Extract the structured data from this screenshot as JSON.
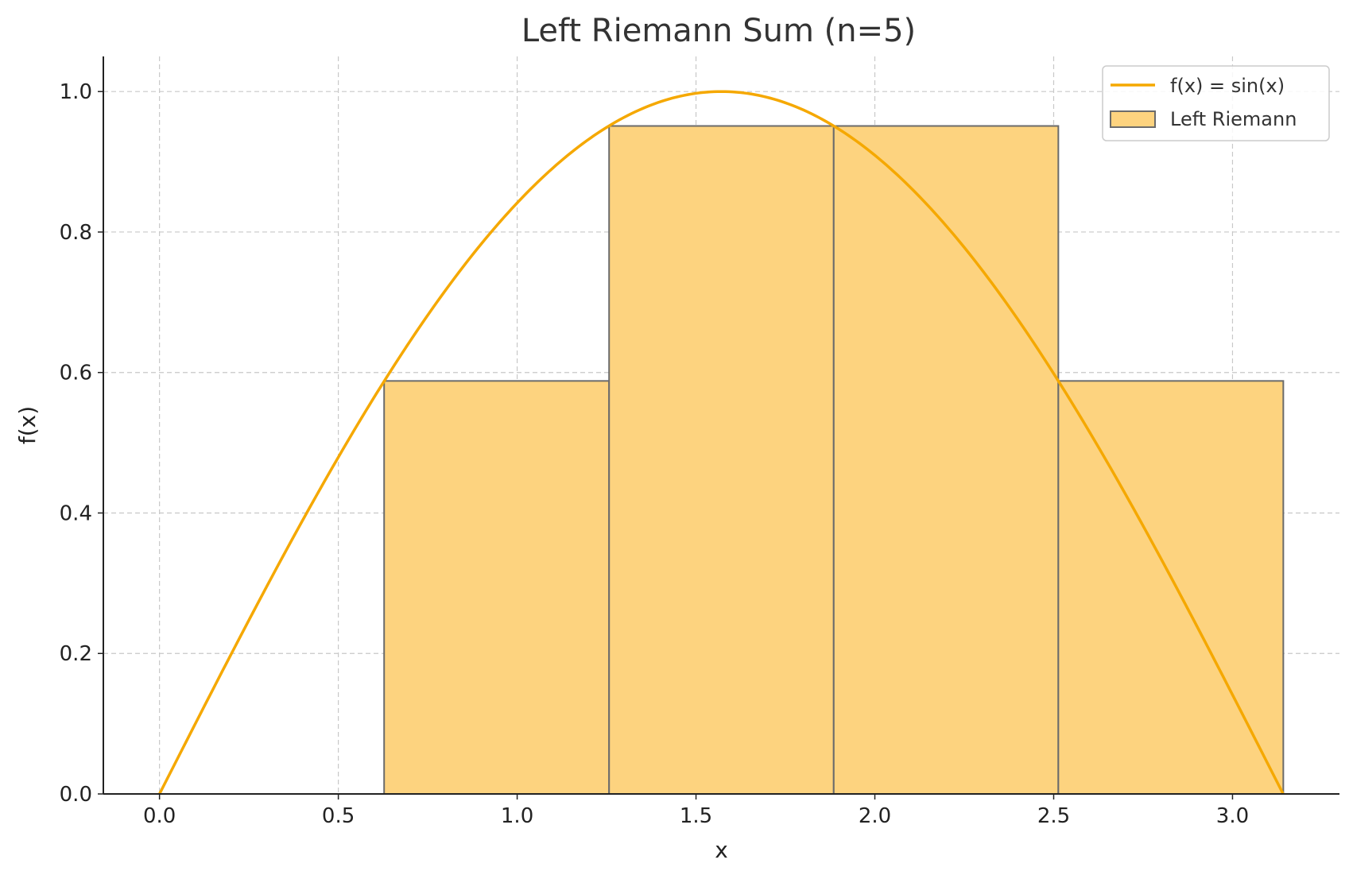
{
  "chart_data": {
    "type": "bar",
    "title": "Left Riemann Sum (n=5)",
    "xlabel": "x",
    "ylabel": "f(x)",
    "xlim": [
      -0.157,
      3.299
    ],
    "ylim": [
      0.0,
      1.05
    ],
    "xticks": [
      "0.0",
      "0.5",
      "1.0",
      "1.5",
      "2.0",
      "2.5",
      "3.0"
    ],
    "yticks": [
      "0.0",
      "0.2",
      "0.4",
      "0.6",
      "0.8",
      "1.0"
    ],
    "grid": true,
    "legend_position": "top-right",
    "series": [
      {
        "name": "f(x) = sin(x)",
        "kind": "line",
        "x_range": [
          0,
          3.1416
        ],
        "color": "#F5A800"
      },
      {
        "name": "Left Riemann",
        "kind": "bar",
        "color": "#FDD37F",
        "edge_color": "#6b6b6b",
        "bars": [
          {
            "x_left": 0.0,
            "x_right": 0.628,
            "height": 0.0
          },
          {
            "x_left": 0.628,
            "x_right": 1.257,
            "height": 0.588
          },
          {
            "x_left": 1.257,
            "x_right": 1.885,
            "height": 0.951
          },
          {
            "x_left": 1.885,
            "x_right": 2.513,
            "height": 0.951
          },
          {
            "x_left": 2.513,
            "x_right": 3.142,
            "height": 0.588
          }
        ]
      }
    ]
  }
}
